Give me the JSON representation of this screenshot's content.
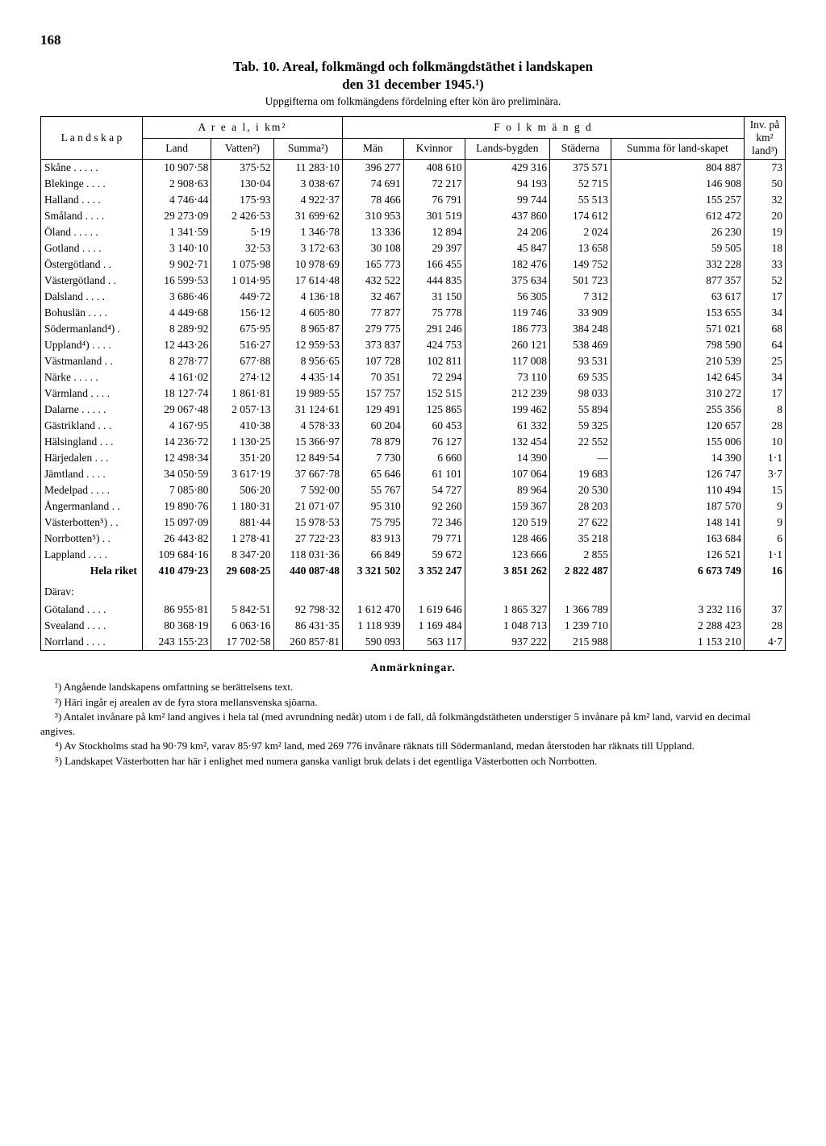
{
  "page_number": "168",
  "title_line1": "Tab. 10. Areal, folkmängd och folkmängdstäthet i landskapen",
  "title_line2": "den 31 december 1945.¹)",
  "subtitle": "Uppgifterna om folkmängdens fördelning efter kön äro preliminära.",
  "headers": {
    "landskap": "L a n d s k a p",
    "areal": "A r e a l,  i  km²",
    "folkmangd": "F o l k m ä n g d",
    "inv": "Inv. på km² land³)",
    "land": "Land",
    "vatten": "Vatten²)",
    "summa_a": "Summa²)",
    "man": "Män",
    "kvinnor": "Kvinnor",
    "landsbygden": "Lands-bygden",
    "staderna": "Städerna",
    "summa_f": "Summa för land-skapet"
  },
  "rows": [
    {
      "name": "Skåne . . . . .",
      "land": "10 907·58",
      "vatten": "375·52",
      "summa_a": "11 283·10",
      "man": "396 277",
      "kvinnor": "408 610",
      "landsb": "429 316",
      "stad": "375 571",
      "summa_f": "804 887",
      "inv": "73"
    },
    {
      "name": "Blekinge . . . .",
      "land": "2 908·63",
      "vatten": "130·04",
      "summa_a": "3 038·67",
      "man": "74 691",
      "kvinnor": "72 217",
      "landsb": "94 193",
      "stad": "52 715",
      "summa_f": "146 908",
      "inv": "50"
    },
    {
      "name": "Halland . . . .",
      "land": "4 746·44",
      "vatten": "175·93",
      "summa_a": "4 922·37",
      "man": "78 466",
      "kvinnor": "76 791",
      "landsb": "99 744",
      "stad": "55 513",
      "summa_f": "155 257",
      "inv": "32"
    },
    {
      "name": "Småland . . . .",
      "land": "29 273·09",
      "vatten": "2 426·53",
      "summa_a": "31 699·62",
      "man": "310 953",
      "kvinnor": "301 519",
      "landsb": "437 860",
      "stad": "174 612",
      "summa_f": "612 472",
      "inv": "20"
    },
    {
      "name": "Öland . . . . .",
      "land": "1 341·59",
      "vatten": "5·19",
      "summa_a": "1 346·78",
      "man": "13 336",
      "kvinnor": "12 894",
      "landsb": "24 206",
      "stad": "2 024",
      "summa_f": "26 230",
      "inv": "19"
    },
    {
      "name": "Gotland . . . .",
      "land": "3 140·10",
      "vatten": "32·53",
      "summa_a": "3 172·63",
      "man": "30 108",
      "kvinnor": "29 397",
      "landsb": "45 847",
      "stad": "13 658",
      "summa_f": "59 505",
      "inv": "18"
    },
    {
      "name": "Östergötland . .",
      "land": "9 902·71",
      "vatten": "1 075·98",
      "summa_a": "10 978·69",
      "man": "165 773",
      "kvinnor": "166 455",
      "landsb": "182 476",
      "stad": "149 752",
      "summa_f": "332 228",
      "inv": "33"
    },
    {
      "name": "Västergötland . .",
      "land": "16 599·53",
      "vatten": "1 014·95",
      "summa_a": "17 614·48",
      "man": "432 522",
      "kvinnor": "444 835",
      "landsb": "375 634",
      "stad": "501 723",
      "summa_f": "877 357",
      "inv": "52"
    },
    {
      "name": "Dalsland . . . .",
      "land": "3 686·46",
      "vatten": "449·72",
      "summa_a": "4 136·18",
      "man": "32 467",
      "kvinnor": "31 150",
      "landsb": "56 305",
      "stad": "7 312",
      "summa_f": "63 617",
      "inv": "17"
    },
    {
      "name": "Bohuslän . . . .",
      "land": "4 449·68",
      "vatten": "156·12",
      "summa_a": "4 605·80",
      "man": "77 877",
      "kvinnor": "75 778",
      "landsb": "119 746",
      "stad": "33 909",
      "summa_f": "153 655",
      "inv": "34"
    },
    {
      "name": "Södermanland⁴) .",
      "land": "8 289·92",
      "vatten": "675·95",
      "summa_a": "8 965·87",
      "man": "279 775",
      "kvinnor": "291 246",
      "landsb": "186 773",
      "stad": "384 248",
      "summa_f": "571 021",
      "inv": "68"
    },
    {
      "name": "Uppland⁴) . . . .",
      "land": "12 443·26",
      "vatten": "516·27",
      "summa_a": "12 959·53",
      "man": "373 837",
      "kvinnor": "424 753",
      "landsb": "260 121",
      "stad": "538 469",
      "summa_f": "798 590",
      "inv": "64"
    },
    {
      "name": "Västmanland . .",
      "land": "8 278·77",
      "vatten": "677·88",
      "summa_a": "8 956·65",
      "man": "107 728",
      "kvinnor": "102 811",
      "landsb": "117 008",
      "stad": "93 531",
      "summa_f": "210 539",
      "inv": "25"
    },
    {
      "name": "Närke . . . . .",
      "land": "4 161·02",
      "vatten": "274·12",
      "summa_a": "4 435·14",
      "man": "70 351",
      "kvinnor": "72 294",
      "landsb": "73 110",
      "stad": "69 535",
      "summa_f": "142 645",
      "inv": "34"
    },
    {
      "name": "Värmland . . . .",
      "land": "18 127·74",
      "vatten": "1 861·81",
      "summa_a": "19 989·55",
      "man": "157 757",
      "kvinnor": "152 515",
      "landsb": "212 239",
      "stad": "98 033",
      "summa_f": "310 272",
      "inv": "17"
    },
    {
      "name": "Dalarne . . . . .",
      "land": "29 067·48",
      "vatten": "2 057·13",
      "summa_a": "31 124·61",
      "man": "129 491",
      "kvinnor": "125 865",
      "landsb": "199 462",
      "stad": "55 894",
      "summa_f": "255 356",
      "inv": "8"
    },
    {
      "name": "Gästrikland . . .",
      "land": "4 167·95",
      "vatten": "410·38",
      "summa_a": "4 578·33",
      "man": "60 204",
      "kvinnor": "60 453",
      "landsb": "61 332",
      "stad": "59 325",
      "summa_f": "120 657",
      "inv": "28"
    },
    {
      "name": "Hälsingland . . .",
      "land": "14 236·72",
      "vatten": "1 130·25",
      "summa_a": "15 366·97",
      "man": "78 879",
      "kvinnor": "76 127",
      "landsb": "132 454",
      "stad": "22 552",
      "summa_f": "155 006",
      "inv": "10"
    },
    {
      "name": "Härjedalen . . .",
      "land": "12 498·34",
      "vatten": "351·20",
      "summa_a": "12 849·54",
      "man": "7 730",
      "kvinnor": "6 660",
      "landsb": "14 390",
      "stad": "—",
      "summa_f": "14 390",
      "inv": "1·1"
    },
    {
      "name": "Jämtland . . . .",
      "land": "34 050·59",
      "vatten": "3 617·19",
      "summa_a": "37 667·78",
      "man": "65 646",
      "kvinnor": "61 101",
      "landsb": "107 064",
      "stad": "19 683",
      "summa_f": "126 747",
      "inv": "3·7"
    },
    {
      "name": "Medelpad . . . .",
      "land": "7 085·80",
      "vatten": "506·20",
      "summa_a": "7 592·00",
      "man": "55 767",
      "kvinnor": "54 727",
      "landsb": "89 964",
      "stad": "20 530",
      "summa_f": "110 494",
      "inv": "15"
    },
    {
      "name": "Ångermanland . .",
      "land": "19 890·76",
      "vatten": "1 180·31",
      "summa_a": "21 071·07",
      "man": "95 310",
      "kvinnor": "92 260",
      "landsb": "159 367",
      "stad": "28 203",
      "summa_f": "187 570",
      "inv": "9"
    },
    {
      "name": "Västerbotten⁵) . .",
      "land": "15 097·09",
      "vatten": "881·44",
      "summa_a": "15 978·53",
      "man": "75 795",
      "kvinnor": "72 346",
      "landsb": "120 519",
      "stad": "27 622",
      "summa_f": "148 141",
      "inv": "9"
    },
    {
      "name": "Norrbotten⁵) . .",
      "land": "26 443·82",
      "vatten": "1 278·41",
      "summa_a": "27 722·23",
      "man": "83 913",
      "kvinnor": "79 771",
      "landsb": "128 466",
      "stad": "35 218",
      "summa_f": "163 684",
      "inv": "6"
    },
    {
      "name": "Lappland . . . .",
      "land": "109 684·16",
      "vatten": "8 347·20",
      "summa_a": "118 031·36",
      "man": "66 849",
      "kvinnor": "59 672",
      "landsb": "123 666",
      "stad": "2 855",
      "summa_f": "126 521",
      "inv": "1·1"
    }
  ],
  "total_row": {
    "name": "Hela riket",
    "land": "410 479·23",
    "vatten": "29 608·25",
    "summa_a": "440 087·48",
    "man": "3 321 502",
    "kvinnor": "3 352 247",
    "landsb": "3 851 262",
    "stad": "2 822 487",
    "summa_f": "6 673 749",
    "inv": "16"
  },
  "darav_label": "Därav:",
  "sub_rows": [
    {
      "name": "Götaland . . . .",
      "land": "86 955·81",
      "vatten": "5 842·51",
      "summa_a": "92 798·32",
      "man": "1 612 470",
      "kvinnor": "1 619 646",
      "landsb": "1 865 327",
      "stad": "1 366 789",
      "summa_f": "3 232 116",
      "inv": "37"
    },
    {
      "name": "Svealand . . . .",
      "land": "80 368·19",
      "vatten": "6 063·16",
      "summa_a": "86 431·35",
      "man": "1 118 939",
      "kvinnor": "1 169 484",
      "landsb": "1 048 713",
      "stad": "1 239 710",
      "summa_f": "2 288 423",
      "inv": "28"
    },
    {
      "name": "Norrland . . . .",
      "land": "243 155·23",
      "vatten": "17 702·58",
      "summa_a": "260 857·81",
      "man": "590 093",
      "kvinnor": "563 117",
      "landsb": "937 222",
      "stad": "215 988",
      "summa_f": "1 153 210",
      "inv": "4·7"
    }
  ],
  "notes_title": "Anmärkningar.",
  "notes": [
    "¹) Angående landskapens omfattning se berättelsens text.",
    "²) Häri ingår ej arealen av de fyra stora mellansvenska sjöarna.",
    "³) Antalet invånare på km² land angives i hela tal (med avrundning nedåt) utom i de fall, då folkmängdstätheten understiger 5 invånare på km² land, varvid en decimal angives.",
    "⁴) Av Stockholms stad ha 90·79 km², varav 85·97 km² land, med 269 776 invånare räknats till Södermanland, medan återstoden har räknats till Uppland.",
    "⁵) Landskapet Västerbotten har här i enlighet med numera ganska vanligt bruk delats i det egentliga Västerbotten och Norrbotten."
  ]
}
